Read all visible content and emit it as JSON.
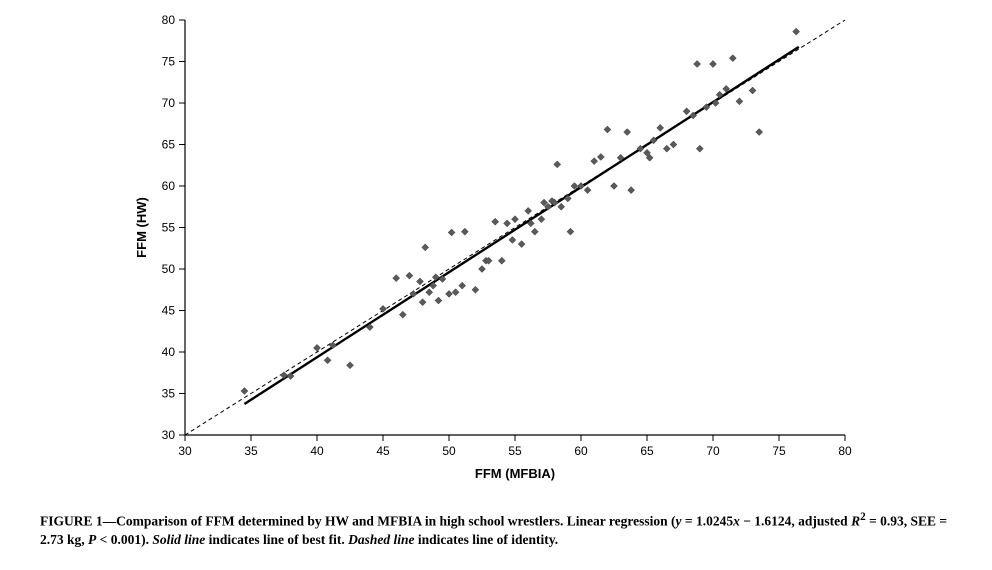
{
  "chart": {
    "type": "scatter",
    "xlabel": "FFM (MFBIA)",
    "ylabel": "FFM (HW)",
    "label_fontsize": 13,
    "label_fontweight": "bold",
    "tick_fontsize": 12,
    "xlim": [
      30,
      80
    ],
    "ylim": [
      30,
      80
    ],
    "xtick_step": 5,
    "ytick_step": 5,
    "background_color": "#ffffff",
    "axis_color": "#000000",
    "tick_color": "#000000",
    "marker": {
      "shape": "diamond",
      "size": 7,
      "fill": "#5a5a5a",
      "stroke": "#3a3a3a",
      "stroke_width": 0.5
    },
    "identity_line": {
      "x1": 30,
      "y1": 30,
      "x2": 80,
      "y2": 80,
      "color": "#000000",
      "width": 1,
      "dash": "4,3"
    },
    "regression_line": {
      "slope": 1.0245,
      "intercept": -1.6124,
      "x_start": 34.5,
      "x_end": 76.5,
      "color": "#000000",
      "width": 2.4
    },
    "points": [
      [
        34.5,
        35.3
      ],
      [
        37.5,
        37.2
      ],
      [
        38.0,
        37.1
      ],
      [
        40.0,
        40.5
      ],
      [
        40.8,
        39.0
      ],
      [
        41.2,
        40.8
      ],
      [
        42.5,
        38.4
      ],
      [
        44.0,
        43.0
      ],
      [
        45.0,
        45.2
      ],
      [
        46.0,
        48.9
      ],
      [
        46.5,
        44.5
      ],
      [
        47.0,
        49.2
      ],
      [
        47.3,
        47.0
      ],
      [
        47.8,
        48.5
      ],
      [
        48.0,
        46.0
      ],
      [
        48.2,
        52.6
      ],
      [
        48.5,
        47.2
      ],
      [
        48.8,
        48.0
      ],
      [
        49.0,
        49.0
      ],
      [
        49.2,
        46.2
      ],
      [
        49.5,
        48.8
      ],
      [
        50.0,
        47.0
      ],
      [
        50.2,
        54.4
      ],
      [
        50.5,
        47.2
      ],
      [
        51.0,
        48.0
      ],
      [
        51.2,
        54.5
      ],
      [
        52.0,
        47.5
      ],
      [
        52.5,
        50.0
      ],
      [
        52.8,
        51.0
      ],
      [
        53.0,
        51.0
      ],
      [
        53.5,
        55.7
      ],
      [
        54.0,
        51.0
      ],
      [
        54.4,
        55.5
      ],
      [
        54.8,
        53.5
      ],
      [
        55.0,
        56.0
      ],
      [
        55.5,
        53.0
      ],
      [
        56.0,
        57.0
      ],
      [
        56.2,
        55.5
      ],
      [
        56.5,
        54.5
      ],
      [
        57.0,
        56.0
      ],
      [
        57.2,
        58.0
      ],
      [
        57.5,
        57.5
      ],
      [
        57.8,
        58.2
      ],
      [
        58.0,
        58.0
      ],
      [
        58.2,
        62.6
      ],
      [
        58.5,
        57.5
      ],
      [
        59.0,
        58.5
      ],
      [
        59.2,
        54.5
      ],
      [
        59.5,
        60.0
      ],
      [
        60.0,
        60.0
      ],
      [
        60.5,
        59.5
      ],
      [
        61.0,
        63.0
      ],
      [
        61.5,
        63.5
      ],
      [
        62.0,
        66.8
      ],
      [
        62.5,
        60.0
      ],
      [
        63.0,
        63.4
      ],
      [
        63.5,
        66.5
      ],
      [
        63.8,
        59.5
      ],
      [
        64.5,
        64.5
      ],
      [
        65.0,
        64.0
      ],
      [
        65.2,
        63.4
      ],
      [
        65.5,
        65.5
      ],
      [
        66.0,
        67.0
      ],
      [
        66.5,
        64.5
      ],
      [
        67.0,
        65.0
      ],
      [
        68.0,
        69.0
      ],
      [
        68.5,
        68.5
      ],
      [
        68.8,
        74.7
      ],
      [
        69.0,
        64.5
      ],
      [
        69.5,
        69.5
      ],
      [
        70.0,
        74.7
      ],
      [
        70.2,
        70.0
      ],
      [
        70.5,
        71.0
      ],
      [
        71.0,
        71.7
      ],
      [
        71.5,
        75.4
      ],
      [
        72.0,
        70.2
      ],
      [
        73.0,
        71.5
      ],
      [
        73.5,
        66.5
      ],
      [
        76.3,
        78.6
      ]
    ]
  },
  "caption": {
    "lead": "FIGURE 1—Comparison of FFM determined by HW and MFBIA in high school wrestlers. Linear regression (",
    "eq_y": "y",
    "eq_mid1": " = 1.0245",
    "eq_x": "x",
    "eq_mid2": " − 1.6124, adjusted ",
    "r2_sym": "R",
    "r2_sup": "2",
    "r2_rest": " = 0.93, SEE = 2.73 kg, ",
    "p_sym": "P",
    "p_rest": " < 0.001). ",
    "solid": "Solid line",
    "solid_rest": " indicates line of best fit. ",
    "dashed": "Dashed line",
    "dashed_rest": " indicates line of identity."
  }
}
